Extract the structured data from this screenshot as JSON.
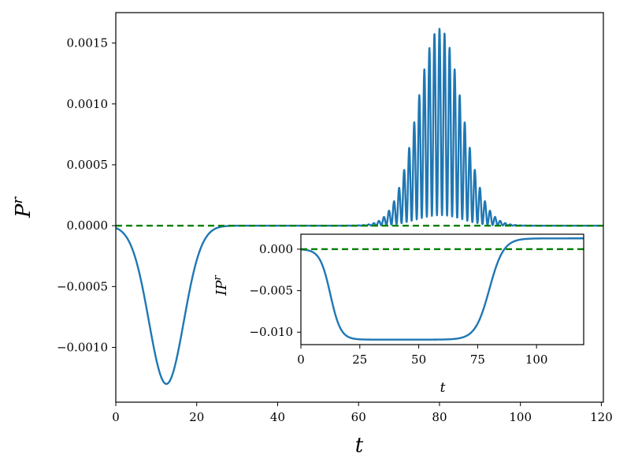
{
  "chart_data": [
    {
      "type": "line",
      "role": "main",
      "xlabel": "t",
      "ylabel_base": "P",
      "ylabel_sup": "r",
      "xlim": [
        0,
        120.5
      ],
      "ylim": [
        -0.00145,
        0.00175
      ],
      "xticks": [
        0,
        20,
        40,
        60,
        80,
        100,
        120
      ],
      "xtick_labels": [
        "0",
        "20",
        "40",
        "60",
        "80",
        "100",
        "120"
      ],
      "yticks": [
        -0.001,
        -0.0005,
        0.0,
        0.0005,
        0.001,
        0.0015
      ],
      "ytick_labels": [
        "−0.0010",
        "−0.0005",
        "0.0000",
        "0.0005",
        "0.0010",
        "0.0015"
      ],
      "grid": false,
      "series": [
        {
          "kind": "curve",
          "color": "#1f77b4",
          "description": "Gaussian dip at t~12.5 (min -0.0013, width ~4.3) plus oscillating packet centred t~80 (envelope peak ~0.0016, width ~5.5, oscillation period ~1.25)",
          "dip": {
            "center": 12.5,
            "min": -0.0013,
            "sigma": 4.3
          },
          "packet": {
            "center": 80.0,
            "peak": 0.00155,
            "sigma": 5.5,
            "period": 1.25
          }
        },
        {
          "kind": "reference",
          "color": "#008000",
          "style": "dashed",
          "y": 0.0
        }
      ]
    },
    {
      "type": "line",
      "role": "inset",
      "xlabel": "t",
      "ylabel_base": "IP",
      "ylabel_sup": "r",
      "xlim": [
        0,
        120
      ],
      "ylim": [
        -0.0115,
        0.0018
      ],
      "xticks": [
        0,
        25,
        50,
        75,
        100
      ],
      "xtick_labels": [
        "0",
        "25",
        "50",
        "75",
        "100"
      ],
      "yticks": [
        -0.01,
        -0.005,
        0.0
      ],
      "ytick_labels": [
        "−0.010",
        "−0.005",
        "0.000"
      ],
      "grid": false,
      "series": [
        {
          "kind": "curve",
          "color": "#1f77b4",
          "description": "Cumulative integral: falls from 0 to -0.0109 around t~12.5, flat until t~70, rises to +0.0013 by t~95",
          "plateau": -0.0109,
          "final": 0.0013,
          "fall_center": 12.5,
          "rise_center": 80.0
        },
        {
          "kind": "reference",
          "color": "#008000",
          "style": "dashed",
          "y": 0.0
        }
      ]
    }
  ]
}
